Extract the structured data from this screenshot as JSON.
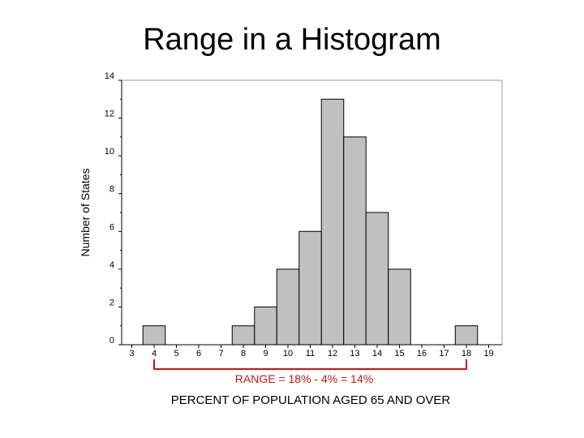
{
  "slide": {
    "title": "Range in a Histogram"
  },
  "chart_data": {
    "type": "bar",
    "xlabel": "PERCENT OF POPULATION AGED 65 AND OVER",
    "ylabel": "Number of States",
    "x_ticks": [
      3,
      4,
      5,
      6,
      7,
      8,
      9,
      10,
      11,
      12,
      13,
      14,
      15,
      16,
      17,
      18,
      19
    ],
    "y_ticks": [
      0,
      2,
      4,
      6,
      8,
      10,
      12,
      14
    ],
    "ylim": [
      0,
      14
    ],
    "xlim": [
      3,
      19
    ],
    "bins": [
      {
        "x": 4,
        "count": 1
      },
      {
        "x": 8,
        "count": 1
      },
      {
        "x": 9,
        "count": 2
      },
      {
        "x": 10,
        "count": 4
      },
      {
        "x": 11,
        "count": 6
      },
      {
        "x": 12,
        "count": 13
      },
      {
        "x": 13,
        "count": 11
      },
      {
        "x": 14,
        "count": 7
      },
      {
        "x": 15,
        "count": 4
      },
      {
        "x": 18,
        "count": 1
      }
    ],
    "annotation": {
      "text": "RANGE = 18% - 4%  = 14%",
      "from": 4,
      "to": 18,
      "color": "#cc1111"
    },
    "bar_color": "#c0c0c0",
    "grid": false
  }
}
